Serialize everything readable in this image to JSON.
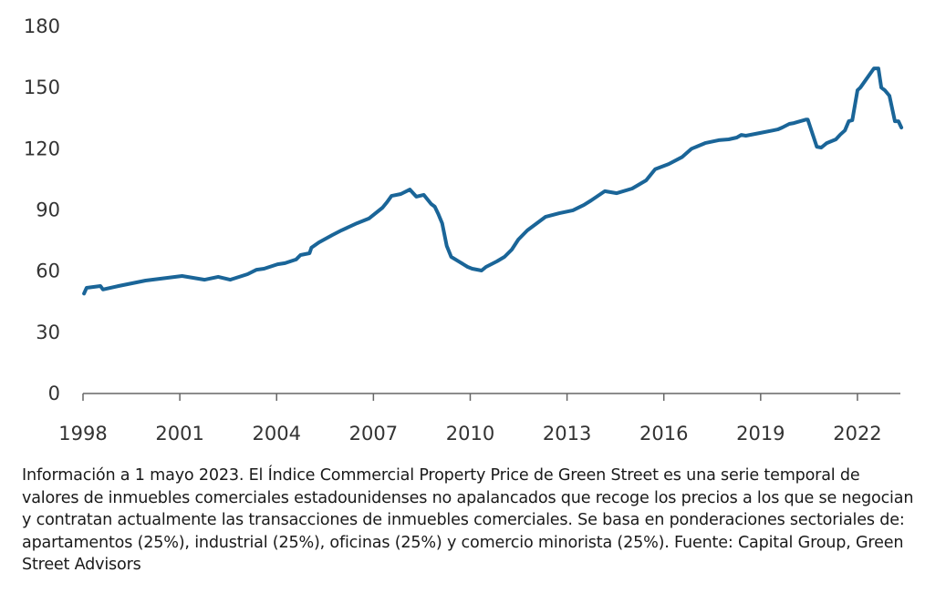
{
  "chart_data": {
    "type": "line",
    "title": "",
    "xlabel": "",
    "ylabel": "",
    "ylim": [
      0,
      180
    ],
    "xlim": [
      1998,
      2023.33
    ],
    "yticks": [
      0,
      30,
      60,
      90,
      120,
      150,
      180
    ],
    "ytick_labels": [
      "0",
      "30",
      "60",
      "90",
      "120",
      "150",
      "180"
    ],
    "xticks": [
      1998,
      2001,
      2004,
      2007,
      2010,
      2013,
      2016,
      2019,
      2022
    ],
    "xtick_labels": [
      "1998",
      "2001",
      "2004",
      "2007",
      "2010",
      "2013",
      "2016",
      "2019",
      "2022"
    ],
    "grid": false,
    "legend": "none",
    "series": [
      {
        "name": "Green Street Commercial Property Price Index",
        "color": "#1a6598",
        "x": [
          1998.03,
          1998.11,
          1998.54,
          1998.62,
          1999.1,
          1999.94,
          2001.07,
          2001.77,
          2002.19,
          2002.56,
          2003.1,
          2003.38,
          2003.61,
          2004.03,
          2004.26,
          2004.6,
          2004.74,
          2005.02,
          2005.08,
          2005.31,
          2005.73,
          2006.01,
          2006.49,
          2006.86,
          2007.28,
          2007.42,
          2007.56,
          2007.85,
          2008.13,
          2008.33,
          2008.56,
          2008.79,
          2008.9,
          2009.01,
          2009.13,
          2009.27,
          2009.41,
          2009.64,
          2009.92,
          2010.06,
          2010.35,
          2010.49,
          2010.83,
          2011.06,
          2011.29,
          2011.49,
          2011.77,
          2012.33,
          2012.76,
          2013.18,
          2013.52,
          2013.75,
          2014.17,
          2014.54,
          2015.02,
          2015.45,
          2015.73,
          2016.15,
          2016.57,
          2016.86,
          2017.28,
          2017.7,
          2018.01,
          2018.26,
          2018.4,
          2018.54,
          2018.96,
          2019.38,
          2019.53,
          2019.67,
          2019.89,
          2020.03,
          2020.4,
          2020.46,
          2020.74,
          2020.88,
          2021.05,
          2021.33,
          2021.47,
          2021.61,
          2021.73,
          2021.84,
          2022.0,
          2022.09,
          2022.51,
          2022.65,
          2022.74,
          2022.85,
          2022.99,
          2023.16,
          2023.27,
          2023.36
        ],
        "values": [
          49.0,
          51.8,
          52.7,
          51.0,
          52.7,
          55.4,
          57.6,
          55.8,
          57.2,
          55.8,
          58.5,
          60.7,
          61.2,
          63.4,
          63.9,
          65.7,
          67.9,
          68.8,
          71.5,
          74.1,
          77.7,
          80.0,
          83.5,
          85.8,
          91.1,
          93.8,
          96.9,
          97.8,
          100.0,
          96.5,
          97.4,
          92.9,
          91.6,
          88.0,
          83.5,
          72.4,
          67.0,
          64.8,
          62.1,
          61.2,
          60.3,
          62.1,
          64.8,
          67.0,
          70.6,
          75.5,
          80.0,
          86.6,
          88.4,
          89.8,
          92.4,
          94.7,
          99.2,
          98.2,
          100.5,
          104.5,
          110.0,
          112.5,
          116.0,
          120.0,
          122.8,
          124.2,
          124.6,
          125.5,
          126.8,
          126.4,
          127.7,
          129.0,
          129.5,
          130.4,
          132.2,
          132.6,
          134.3,
          134.3,
          121.0,
          120.6,
          122.8,
          124.6,
          127.0,
          129.0,
          133.5,
          134.0,
          148.7,
          150.0,
          159.4,
          159.4,
          150.0,
          148.7,
          146.0,
          133.5,
          133.5,
          130.4
        ]
      }
    ]
  },
  "caption": "Información a 1 mayo 2023. El Índice Commercial Property Price de Green Street es una serie temporal de valores de inmuebles comerciales estadounidenses no apalancados que recoge los precios a los que se negocian y contratan actualmente las transacciones de inmuebles comerciales. Se basa en ponderaciones sectoriales de: apartamentos (25%), industrial (25%), oficinas (25%) y comercio minorista (25%). Fuente: Capital Group, Green Street Advisors"
}
